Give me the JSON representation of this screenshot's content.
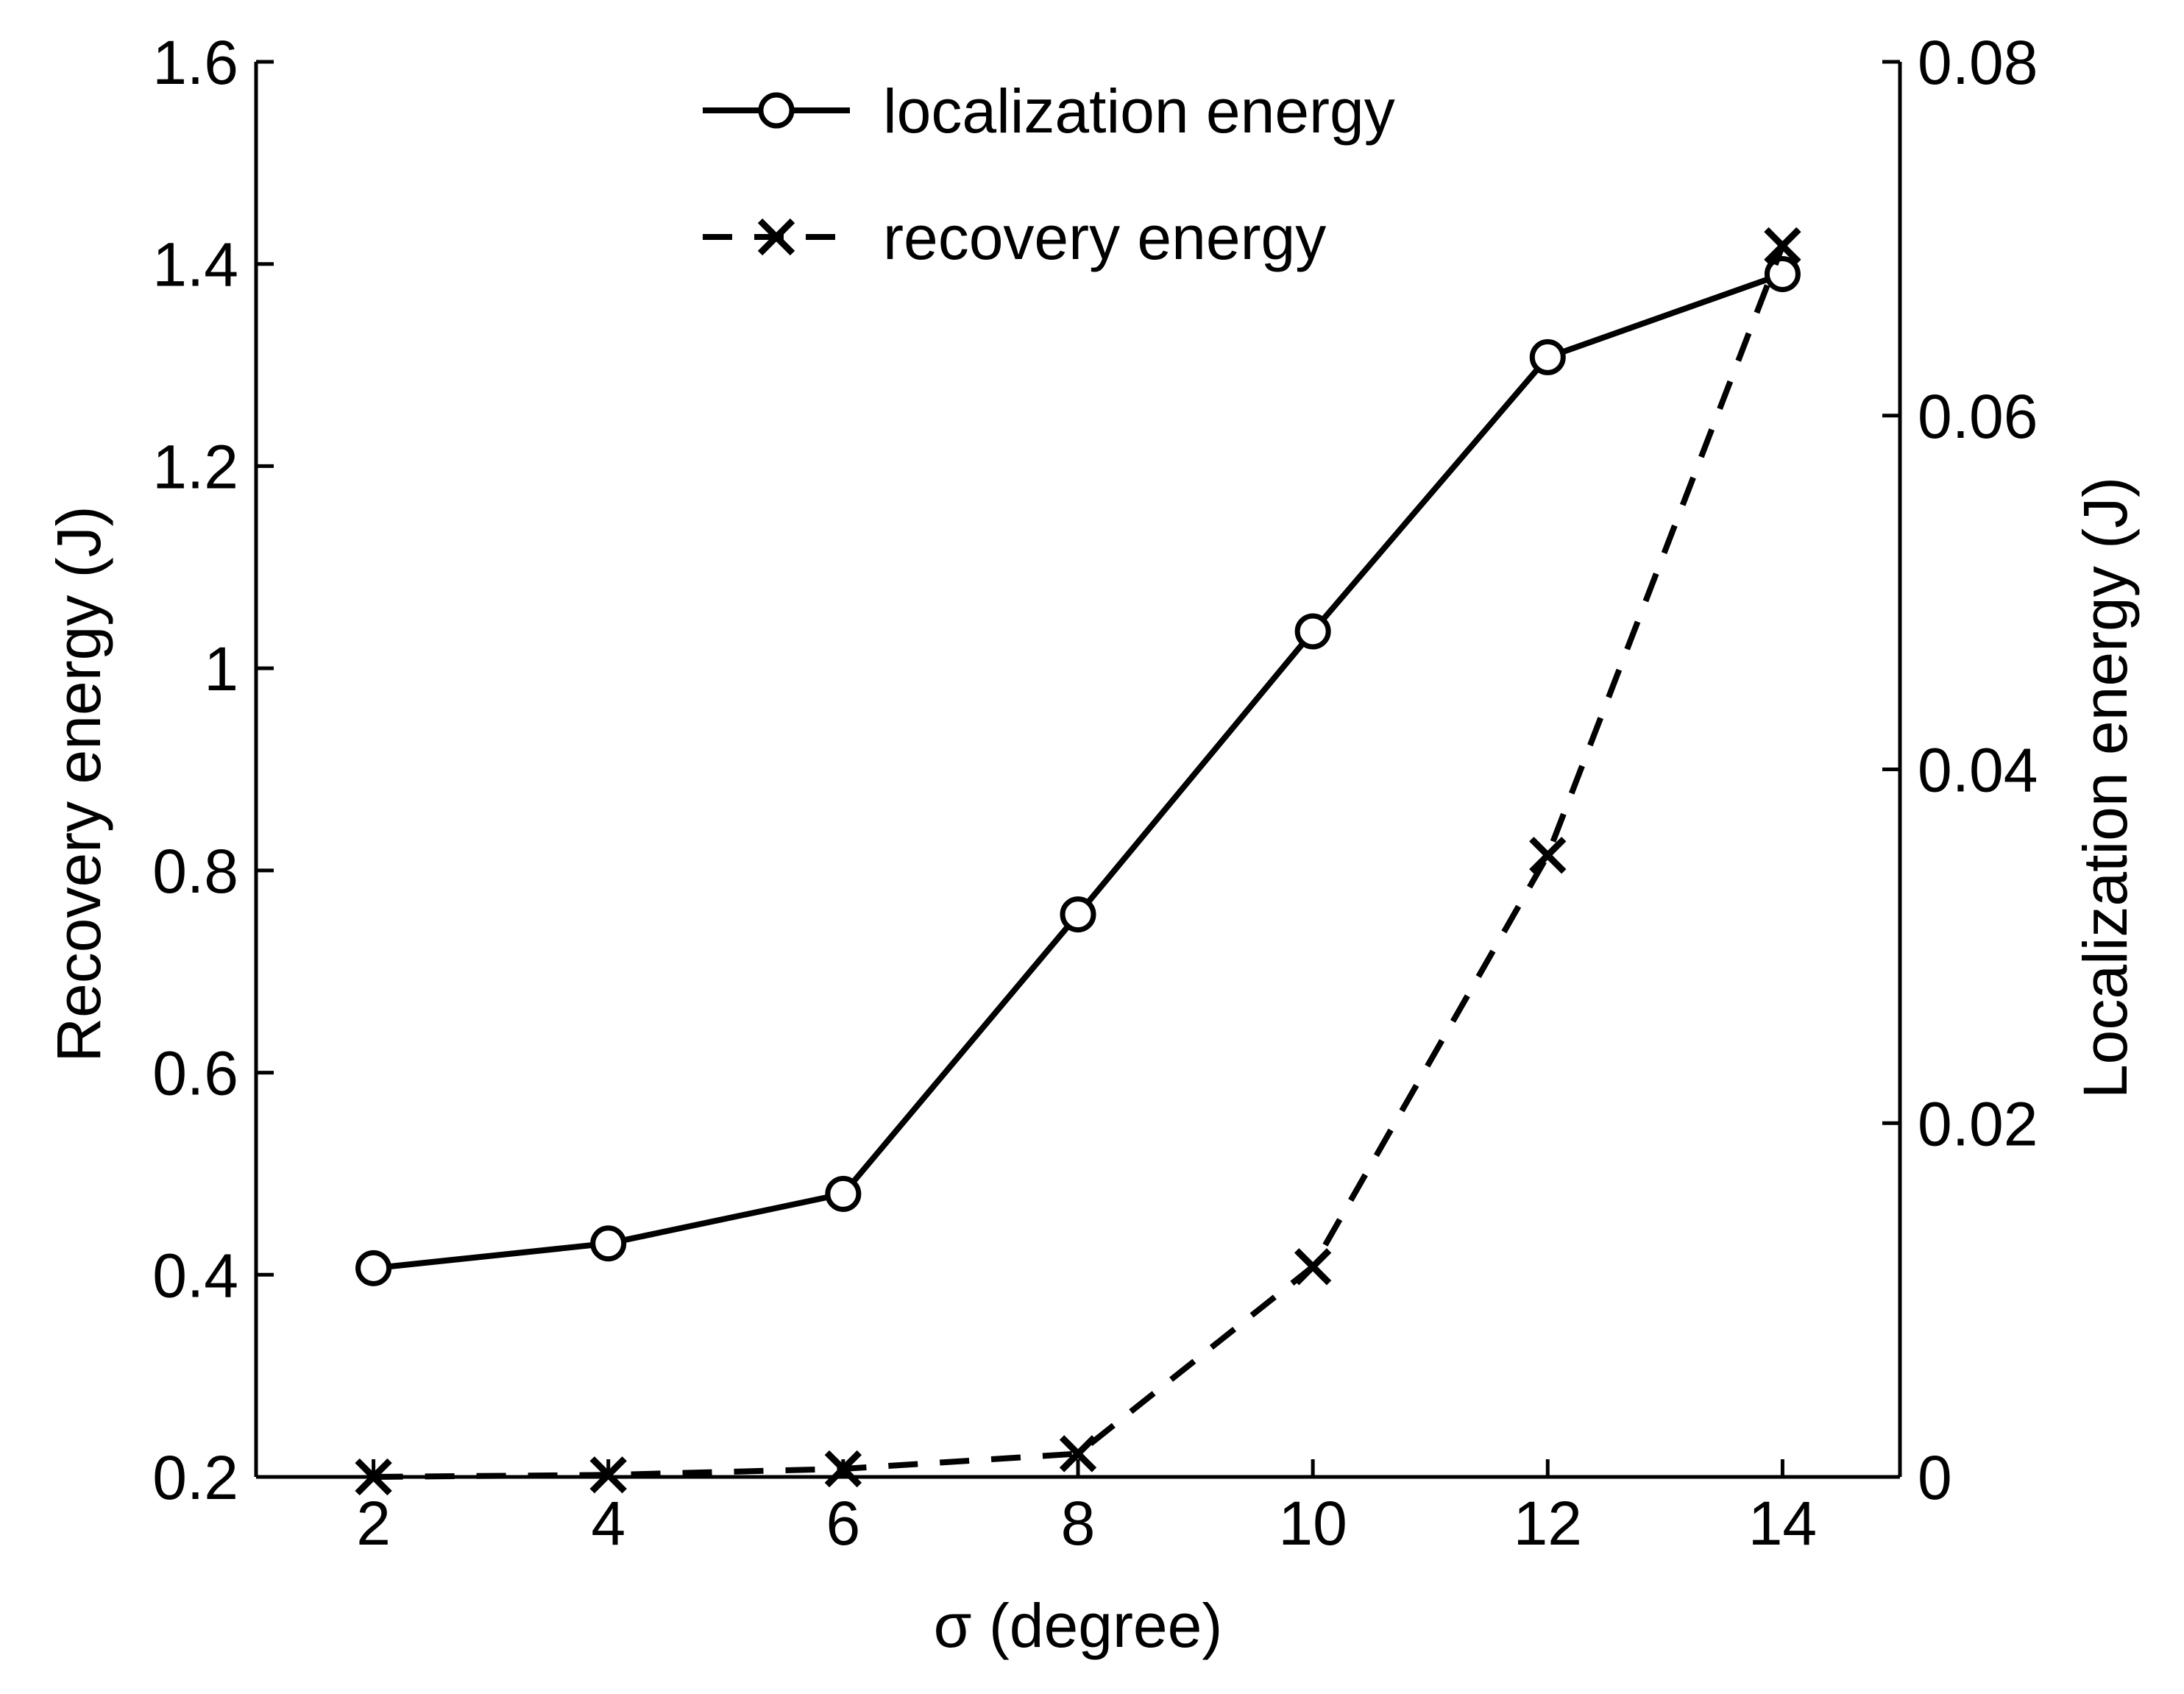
{
  "chart_data": {
    "type": "line",
    "x": [
      2,
      4,
      6,
      8,
      10,
      12,
      14
    ],
    "xlabel": "σ (degree)",
    "xlim": [
      1,
      15
    ],
    "xticks": [
      2,
      4,
      6,
      8,
      10,
      12,
      14
    ],
    "xtick_labels": [
      "2",
      "4",
      "6",
      "8",
      "10",
      "12",
      "14"
    ],
    "left_axis": {
      "label": "Recovery energy (J)",
      "ylim": [
        0.2,
        1.6
      ],
      "ticks": [
        0.2,
        0.4,
        0.6,
        0.8,
        1.0,
        1.2,
        1.4,
        1.6
      ],
      "tick_labels": [
        "0.2",
        "0.4",
        "0.6",
        "0.8",
        "1",
        "1.2",
        "1.4",
        "1.6"
      ]
    },
    "right_axis": {
      "label": "Localization energy (J)",
      "ylim": [
        0,
        0.08
      ],
      "ticks": [
        0,
        0.02,
        0.04,
        0.06,
        0.08
      ],
      "tick_labels": [
        "0",
        "0.02",
        "0.04",
        "0.06",
        "0.08"
      ]
    },
    "series": [
      {
        "name": "localization energy",
        "axis": "right",
        "style": "solid",
        "marker": "circle",
        "values": [
          0.0118,
          0.0132,
          0.016,
          0.0318,
          0.0478,
          0.0633,
          0.068
        ]
      },
      {
        "name": "recovery energy",
        "axis": "left",
        "style": "dashed",
        "marker": "x",
        "values": [
          0.2,
          0.202,
          0.208,
          0.223,
          0.408,
          0.815,
          1.418
        ]
      }
    ],
    "legend": {
      "position": "top-center",
      "entries": [
        "localization energy",
        "recovery energy"
      ]
    },
    "grid": false,
    "color": "#000000"
  }
}
